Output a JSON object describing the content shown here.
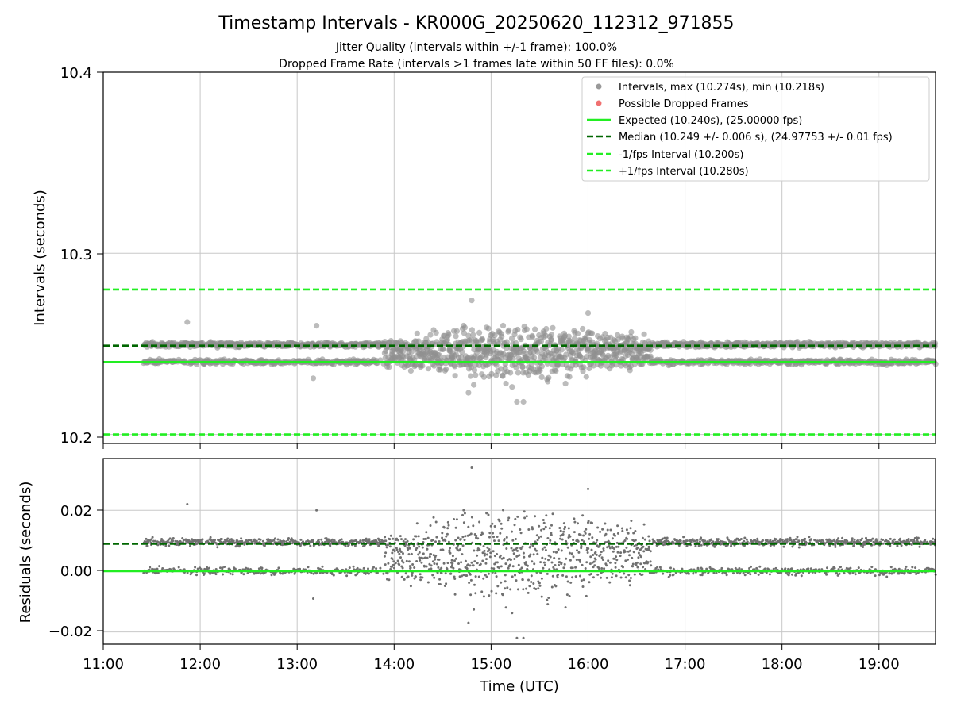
{
  "chart_data": [
    {
      "type": "scatter",
      "title": "Timestamp Intervals - KR000G_20250620_112312_971855",
      "subtitle_lines": [
        "Jitter Quality (intervals within +/-1 frame): 100.0%",
        "Dropped Frame Rate (intervals >1 frames late within 50 FF files): 0.0%"
      ],
      "ylabel": "Intervals (seconds)",
      "ylim": [
        10.195,
        10.4
      ],
      "yticks": [
        "10.2",
        "10.3",
        "10.4"
      ],
      "ytick_values": [
        10.2,
        10.3,
        10.4
      ],
      "grid": true,
      "legend_position": "top-right",
      "legend": [
        {
          "label": "Intervals, max (10.274s), min (10.218s)",
          "kind": "dot",
          "color": "#999999"
        },
        {
          "label": "Possible Dropped Frames",
          "kind": "dot",
          "color": "#f07070"
        },
        {
          "label": "Expected (10.240s), (25.00000 fps)",
          "kind": "solid",
          "color": "#22ee22"
        },
        {
          "label": "Median (10.249 +/- 0.006 s), (24.97753 +/- 0.01 fps)",
          "kind": "dashed",
          "color": "#006600"
        },
        {
          "label": "-1/fps Interval (10.200s)",
          "kind": "dashed",
          "color": "#22ee22"
        },
        {
          "label": "+1/fps Interval (10.280s)",
          "kind": "dashed",
          "color": "#22ee22"
        }
      ],
      "reference_lines": {
        "expected": 10.24,
        "median": 10.249,
        "minus_interval": 10.2,
        "plus_interval": 10.28
      },
      "series": [
        {
          "name": "Intervals, max (10.274s), min (10.218s)",
          "color": "#909090",
          "max": 10.274,
          "min": 10.218,
          "x_range": [
            "11:25",
            "19:35"
          ],
          "baseline_levels": [
            10.24,
            10.2495
          ],
          "spread_profile": [
            {
              "time": "11:25",
              "spread": 0.003
            },
            {
              "time": "13:45",
              "spread": 0.004
            },
            {
              "time": "14:30",
              "spread": 0.009
            },
            {
              "time": "15:00",
              "spread": 0.016
            },
            {
              "time": "15:30",
              "spread": 0.016
            },
            {
              "time": "16:15",
              "spread": 0.009
            },
            {
              "time": "16:45",
              "spread": 0.004
            },
            {
              "time": "19:35",
              "spread": 0.003
            }
          ],
          "outliers": [
            {
              "x": "11:52",
              "y": 10.262
            },
            {
              "x": "13:10",
              "y": 10.231
            },
            {
              "x": "13:12",
              "y": 10.26
            },
            {
              "x": "14:48",
              "y": 10.274
            },
            {
              "x": "15:16",
              "y": 10.218
            },
            {
              "x": "15:20",
              "y": 10.218
            },
            {
              "x": "14:46",
              "y": 10.223
            },
            {
              "x": "16:00",
              "y": 10.267
            }
          ]
        }
      ]
    },
    {
      "type": "scatter",
      "xlabel": "Time (UTC)",
      "ylabel": "Residuals (seconds)",
      "xlim": [
        "11:00",
        "19:35"
      ],
      "xticks": [
        "11:00",
        "12:00",
        "13:00",
        "14:00",
        "15:00",
        "16:00",
        "17:00",
        "18:00",
        "19:00"
      ],
      "ylim": [
        -0.024,
        0.037
      ],
      "yticks": [
        "−0.02",
        "0.00",
        "0.02"
      ],
      "ytick_values": [
        -0.02,
        0.0,
        0.02
      ],
      "grid": true,
      "reference_lines": {
        "zero": 0.0,
        "median": 0.009
      },
      "series": [
        {
          "name": "Residuals",
          "color": "#707070",
          "baseline_levels": [
            0.0,
            0.0095
          ],
          "max": 0.034,
          "min": -0.022
        }
      ]
    }
  ]
}
